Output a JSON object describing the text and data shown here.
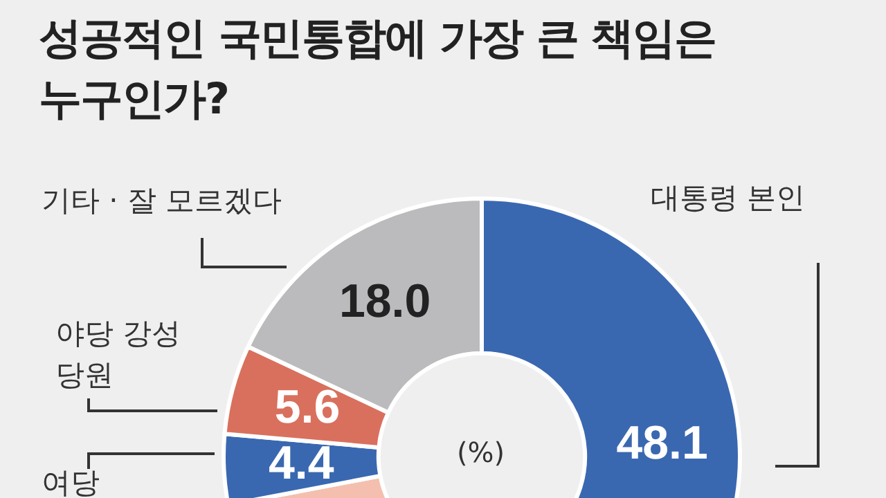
{
  "chart_data": {
    "type": "donut",
    "title": "성공적인 국민통합에 가장 큰 책임은 누구인가?",
    "categories": [
      "대통령 본인",
      null,
      "여당",
      "야당 강성 당원",
      "기타 · 잘 모르겠다"
    ],
    "values": [
      48.1,
      23.9,
      4.4,
      5.6,
      18.0
    ],
    "colors": [
      "#3a68b0",
      "#f4bfae",
      "#3a68b0",
      "#d9705e",
      "#bbbbbd"
    ],
    "value_labels": [
      "48.1",
      null,
      "4.4",
      "5.6",
      "18.0"
    ],
    "annotations": [
      "(%)"
    ],
    "legend": false
  }
}
